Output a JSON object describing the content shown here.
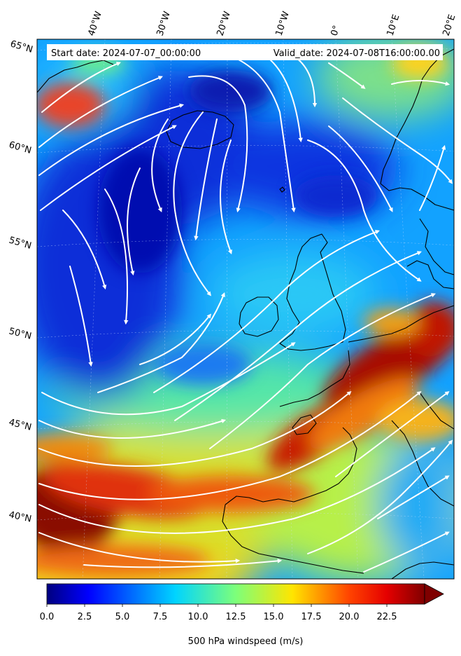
{
  "header": {
    "start_date": "Start date: 2024-07-07_00:00:00",
    "valid_date": "Valid_date: 2024-07-08T16:00:00.00"
  },
  "map": {
    "longitude_labels": [
      "40°W",
      "30°W",
      "20°W",
      "10°W",
      "0°",
      "10°E",
      "20°E"
    ],
    "latitude_labels": [
      "65°N",
      "60°N",
      "55°N",
      "50°N",
      "45°N",
      "40°N"
    ],
    "field": "windspeed",
    "streamline_color": "#ffffff",
    "coastline_color": "#000000"
  },
  "colorbar": {
    "label": "500 hPa windspeed (m/s)",
    "ticks": [
      "0.0",
      "2.5",
      "5.0",
      "7.5",
      "10.0",
      "12.5",
      "15.0",
      "17.5",
      "20.0",
      "22.5"
    ],
    "range": [
      0,
      25
    ],
    "colormap": "jet",
    "extend": "max"
  }
}
